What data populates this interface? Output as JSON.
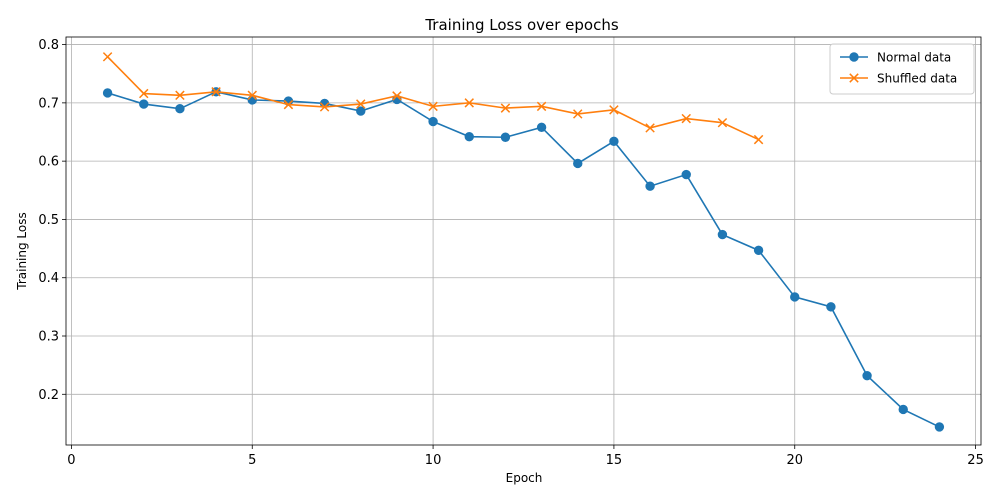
{
  "chart_data": {
    "type": "line",
    "title": "Training Loss over epochs",
    "xlabel": "Epoch",
    "ylabel": "Training Loss",
    "xlim": [
      -0.15,
      25.15
    ],
    "ylim": [
      0.113,
      0.813
    ],
    "xticks": [
      0,
      5,
      10,
      15,
      20,
      25
    ],
    "yticks": [
      0.2,
      0.3,
      0.4,
      0.5,
      0.6,
      0.7,
      0.8
    ],
    "ytick_labels": [
      "0.2",
      "0.3",
      "0.4",
      "0.5",
      "0.6",
      "0.7",
      "0.8"
    ],
    "grid": true,
    "legend_position": "top-right",
    "series": [
      {
        "name": "Normal data",
        "color": "#1f77b4",
        "marker": "circle",
        "x": [
          1,
          2,
          3,
          4,
          5,
          6,
          7,
          8,
          9,
          10,
          11,
          12,
          13,
          14,
          15,
          16,
          17,
          18,
          19,
          20,
          21,
          22,
          23,
          24
        ],
        "y": [
          0.717,
          0.698,
          0.69,
          0.719,
          0.705,
          0.703,
          0.699,
          0.686,
          0.706,
          0.668,
          0.642,
          0.641,
          0.658,
          0.596,
          0.634,
          0.557,
          0.577,
          0.474,
          0.447,
          0.367,
          0.35,
          0.232,
          0.174,
          0.144
        ]
      },
      {
        "name": "Shuffled data",
        "color": "#ff7f0e",
        "marker": "x",
        "x": [
          1,
          2,
          3,
          4,
          5,
          6,
          7,
          8,
          9,
          10,
          11,
          12,
          13,
          14,
          15,
          16,
          17,
          18,
          19
        ],
        "y": [
          0.779,
          0.716,
          0.713,
          0.719,
          0.713,
          0.697,
          0.693,
          0.698,
          0.712,
          0.694,
          0.7,
          0.691,
          0.694,
          0.681,
          0.688,
          0.657,
          0.673,
          0.666,
          0.637
        ]
      }
    ]
  }
}
